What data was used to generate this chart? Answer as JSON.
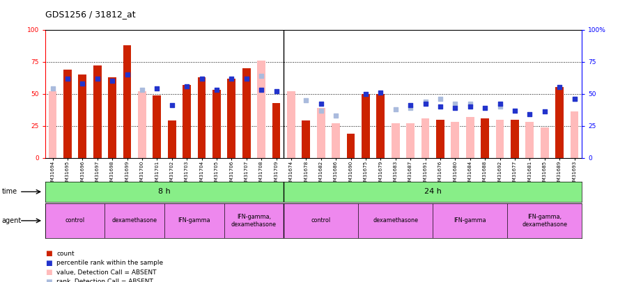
{
  "title": "GDS1256 / 31812_at",
  "samples": [
    "GSM31694",
    "GSM31695",
    "GSM31696",
    "GSM31697",
    "GSM31698",
    "GSM31699",
    "GSM31700",
    "GSM31701",
    "GSM31702",
    "GSM31703",
    "GSM31704",
    "GSM31705",
    "GSM31706",
    "GSM31707",
    "GSM31708",
    "GSM31709",
    "GSM31674",
    "GSM31678",
    "GSM31682",
    "GSM31686",
    "GSM31690",
    "GSM31675",
    "GSM31679",
    "GSM31683",
    "GSM31687",
    "GSM31691",
    "GSM31676",
    "GSM31680",
    "GSM31684",
    "GSM31688",
    "GSM31692",
    "GSM31677",
    "GSM31681",
    "GSM31685",
    "GSM31689",
    "GSM31693"
  ],
  "count_values": [
    null,
    69,
    65,
    72,
    63,
    88,
    null,
    49,
    29,
    57,
    63,
    53,
    62,
    70,
    null,
    43,
    null,
    29,
    null,
    null,
    19,
    50,
    50,
    null,
    null,
    null,
    30,
    null,
    null,
    31,
    null,
    30,
    null,
    null,
    55,
    null
  ],
  "rank_values": [
    null,
    62,
    58,
    62,
    60,
    65,
    null,
    54,
    41,
    56,
    62,
    53,
    62,
    62,
    53,
    52,
    null,
    null,
    42,
    null,
    null,
    50,
    51,
    null,
    41,
    42,
    40,
    39,
    40,
    39,
    42,
    37,
    34,
    36,
    55,
    46
  ],
  "absent_count_values": [
    52,
    null,
    null,
    null,
    null,
    null,
    52,
    null,
    null,
    null,
    null,
    null,
    null,
    null,
    76,
    null,
    52,
    null,
    39,
    27,
    null,
    null,
    null,
    27,
    27,
    31,
    null,
    28,
    32,
    null,
    30,
    null,
    28,
    24,
    null,
    36
  ],
  "absent_rank_values": [
    54,
    null,
    null,
    null,
    null,
    null,
    53,
    null,
    null,
    null,
    null,
    null,
    null,
    null,
    64,
    null,
    null,
    45,
    37,
    33,
    null,
    null,
    null,
    38,
    39,
    44,
    46,
    42,
    42,
    null,
    40,
    null,
    null,
    null,
    null,
    46
  ],
  "bar_color_red": "#cc2200",
  "bar_color_pink": "#ffbbbb",
  "dot_color_blue": "#2233cc",
  "dot_color_lightblue": "#aabbdd",
  "time_row_color": "#88ee88",
  "agent_row_color": "#ee88ee",
  "bg_color": "#ffffff",
  "split_index": 16,
  "n_samples": 36,
  "agent_labels": [
    "control",
    "dexamethasone",
    "IFN-gamma",
    "IFN-gamma,\ndexamethasone",
    "control",
    "dexamethasone",
    "IFN-gamma",
    "IFN-gamma,\ndexamethasone"
  ],
  "agent_starts": [
    0,
    4,
    8,
    12,
    16,
    21,
    26,
    31
  ],
  "agent_ends": [
    4,
    8,
    12,
    16,
    21,
    26,
    31,
    36
  ]
}
